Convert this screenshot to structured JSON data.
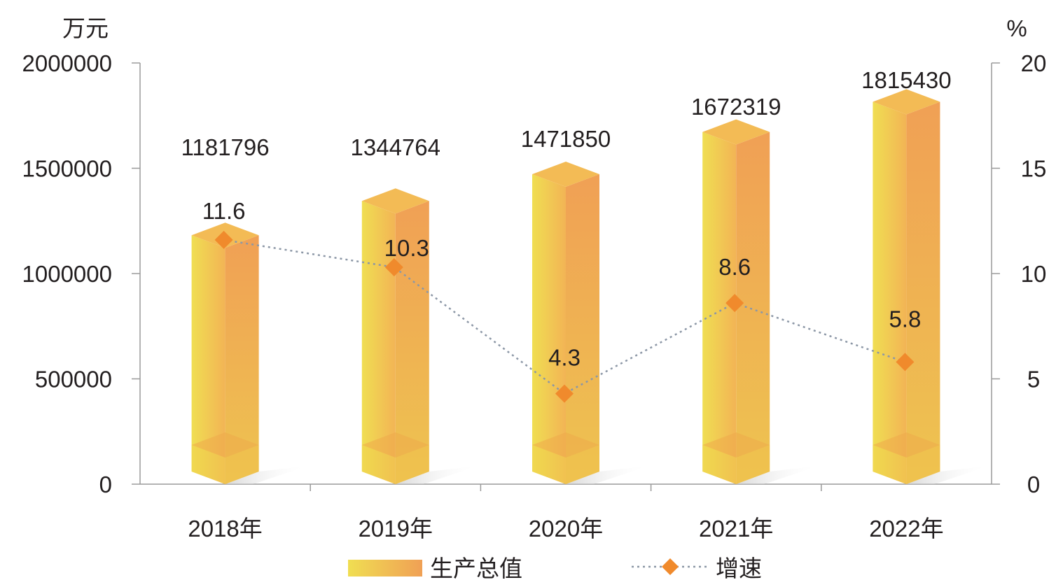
{
  "chart_data": {
    "type": "bar+line",
    "categories": [
      "2018年",
      "2019年",
      "2020年",
      "2021年",
      "2022年"
    ],
    "series": [
      {
        "name": "生产总值",
        "type": "bar",
        "axis": "left",
        "values": [
          1181796,
          1344764,
          1471850,
          1672319,
          1815430
        ]
      },
      {
        "name": "增速",
        "type": "line",
        "axis": "right",
        "values": [
          11.6,
          10.3,
          4.3,
          8.6,
          5.8
        ]
      }
    ],
    "y_left": {
      "unit": "万元",
      "ylim": [
        0,
        2000000
      ],
      "ticks": [
        "0",
        "500000",
        "1000000",
        "1500000",
        "2000000"
      ]
    },
    "y_right": {
      "unit": "%",
      "ylim": [
        0,
        20
      ],
      "ticks": [
        "0",
        "5",
        "10",
        "15",
        "20"
      ]
    },
    "legend": {
      "position": "bottom",
      "items": [
        "生产总值",
        "增速"
      ]
    },
    "grid": false,
    "colors": {
      "bar_light": "#f0de52",
      "bar_dark": "#f0a055",
      "bar_top": "#f3bb55",
      "line": "#8c97a6",
      "marker": "#f08a2c",
      "axis": "#9a9a9a"
    }
  }
}
